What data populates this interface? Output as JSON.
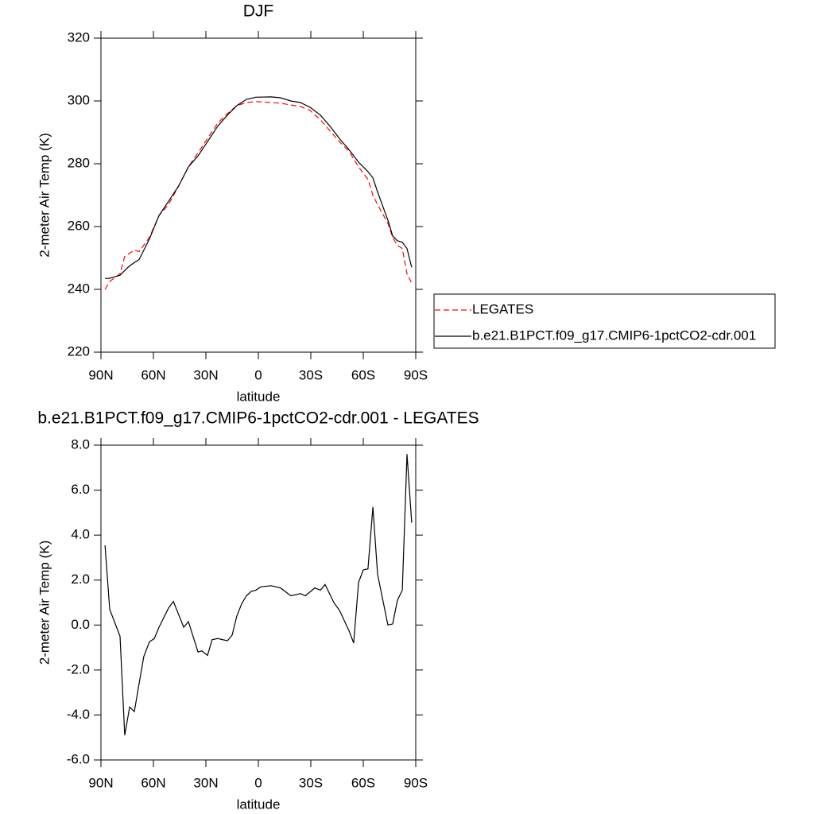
{
  "chart_data": [
    {
      "type": "line",
      "title": "DJF",
      "y_label": "2-meter Air Temp (K)",
      "x_label": "latitude",
      "x": [
        87.7,
        85,
        79.1,
        76.4,
        73.6,
        70.9,
        68.2,
        62.3,
        56.8,
        51.4,
        45.5,
        40,
        34.5,
        29.1,
        23.2,
        17.7,
        12.3,
        6.8,
        1.4,
        -7.3,
        -12.7,
        -18.6,
        -24.1,
        -29.5,
        -35.5,
        -40.9,
        -46.4,
        -51.8,
        -57.3,
        -62.7,
        -65.5,
        -68.2,
        -74.1,
        -76.8,
        -79.5,
        -82.3,
        -85,
        -87.7
      ],
      "series": [
        {
          "name": "LEGATES",
          "color": "#ff0000",
          "dashed": true,
          "values": [
            240,
            242.5,
            245,
            250.5,
            251.5,
            252.5,
            252,
            256.5,
            263.5,
            267,
            273,
            279,
            283.5,
            288,
            293,
            296,
            298.5,
            299.5,
            299.8,
            299.5,
            299.3,
            298.7,
            298.2,
            297,
            294,
            290.5,
            287,
            284,
            279,
            275,
            270,
            267,
            261,
            256.5,
            254,
            253,
            245,
            242
          ]
        },
        {
          "name": "b.e21.B1PCT.f09_g17.CMIP6-1pctCO2-cdr.001",
          "color": "#000000",
          "dashed": false,
          "values": [
            243.5,
            243.5,
            244.5,
            246,
            247.5,
            248.5,
            249.5,
            256,
            263.5,
            268,
            273,
            279,
            282.5,
            287,
            292,
            295.5,
            298.5,
            300.5,
            301.2,
            301.3,
            301,
            300,
            299.5,
            298,
            295.5,
            292,
            288,
            284.5,
            280.5,
            277.5,
            275.5,
            271,
            262,
            257,
            255.5,
            255,
            253,
            247
          ]
        }
      ],
      "xlim": [
        90,
        -90
      ],
      "xticks": [
        {
          "value": 90,
          "label": "90N"
        },
        {
          "value": 60,
          "label": "60N"
        },
        {
          "value": 30,
          "label": "30N"
        },
        0,
        {
          "value": -30,
          "label": "30S"
        },
        {
          "value": -60,
          "label": "60S"
        },
        {
          "value": -90,
          "label": "90S"
        }
      ],
      "ylim": [
        220,
        320
      ],
      "yticks": [
        220,
        240,
        260,
        280,
        300,
        320
      ],
      "legend": "outside-right"
    },
    {
      "type": "line",
      "title": "b.e21.B1PCT.f09_g17.CMIP6-1pctCO2-cdr.001 - LEGATES",
      "y_label": "2-meter Air Temp (K)",
      "x_label": "latitude",
      "x": [
        87.7,
        85,
        79.1,
        76.4,
        73.6,
        70.9,
        68.2,
        65.5,
        62.3,
        59.5,
        56.8,
        51.4,
        48.6,
        42.7,
        40,
        34.5,
        32.3,
        29.1,
        26.4,
        23.2,
        17.7,
        15,
        12.3,
        9.5,
        6.8,
        4.1,
        1.4,
        -1.4,
        -7.3,
        -12.7,
        -18.6,
        -24.1,
        -26.8,
        -32.3,
        -35.5,
        -38.2,
        -43.2,
        -46.4,
        -51.8,
        -54.5,
        -57.3,
        -60,
        -62.7,
        -65.5,
        -68.2,
        -74.1,
        -76.8,
        -79.5,
        -82.3,
        -85,
        -87.7
      ],
      "values": [
        3.55,
        0.7,
        -0.5,
        -4.9,
        -3.65,
        -3.85,
        -2.6,
        -1.4,
        -0.75,
        -0.6,
        -0.1,
        0.75,
        1.05,
        -0.1,
        0.15,
        -1.2,
        -1.15,
        -1.35,
        -0.65,
        -0.6,
        -0.7,
        -0.45,
        0.4,
        0.95,
        1.3,
        1.5,
        1.55,
        1.7,
        1.75,
        1.65,
        1.3,
        1.4,
        1.3,
        1.65,
        1.55,
        1.8,
        1.0,
        0.65,
        -0.25,
        -0.8,
        1.9,
        2.45,
        2.5,
        5.25,
        2.25,
        0.0,
        0.05,
        1.1,
        1.55,
        7.6,
        4.55
      ],
      "color": "#000000",
      "xlim": [
        90,
        -90
      ],
      "xticks": [
        {
          "value": 90,
          "label": "90N"
        },
        {
          "value": 60,
          "label": "60N"
        },
        {
          "value": 30,
          "label": "30N"
        },
        0,
        {
          "value": -30,
          "label": "30S"
        },
        {
          "value": -60,
          "label": "60S"
        },
        {
          "value": -90,
          "label": "90S"
        }
      ],
      "ylim": [
        -6,
        8
      ],
      "yticks": [
        {
          "value": -6,
          "label": "-6.0"
        },
        {
          "value": -4,
          "label": "-4.0"
        },
        {
          "value": -2,
          "label": "-2.0"
        },
        {
          "value": 0,
          "label": "0.0"
        },
        {
          "value": 2,
          "label": "2.0"
        },
        {
          "value": 4,
          "label": "4.0"
        },
        {
          "value": 6,
          "label": "6.0"
        },
        {
          "value": 8,
          "label": "8.0"
        }
      ]
    }
  ]
}
